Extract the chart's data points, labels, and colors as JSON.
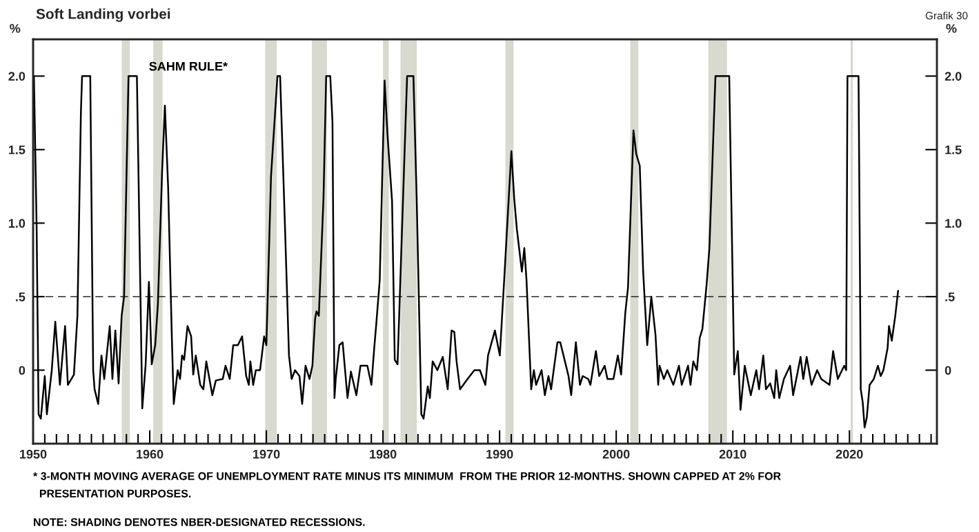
{
  "chart_data": {
    "type": "line",
    "title": "Soft Landing vorbei",
    "ylabel": "%",
    "y2label": "%",
    "annotations": [
      "SAHM RULE*",
      "Grafik 30",
      "* 3-MONTH MOVING AVERAGE OF UNEMPLOYMENT RATE MINUS ITS MINIMUM  FROM THE PRIOR 12-MONTHS. SHOWN CAPPED AT 2% FOR\n  PRESENTATION PURPOSES.",
      "NOTE: SHADING DENOTES NBER-DESIGNATED RECESSIONS."
    ],
    "series": [
      {
        "color": "#000000",
        "line_style": "solid",
        "x": [
          1950.07,
          1950.3,
          1950.47,
          1950.66,
          1951.0,
          1951.18,
          1951.6,
          1951.9,
          1952.3,
          1952.74,
          1952.98,
          1953.5,
          1953.8,
          1954.1,
          1954.2,
          1954.9,
          1955.15,
          1955.27,
          1955.58,
          1955.86,
          1956.1,
          1956.57,
          1956.8,
          1957.05,
          1957.33,
          1957.59,
          1957.8,
          1958.18,
          1958.9,
          1959.36,
          1959.65,
          1959.93,
          1960.17,
          1960.47,
          1960.7,
          1961.06,
          1961.3,
          1961.58,
          1961.89,
          1962.06,
          1962.4,
          1962.6,
          1962.77,
          1962.95,
          1963.24,
          1963.55,
          1963.73,
          1963.95,
          1964.33,
          1964.6,
          1964.85,
          1965.37,
          1965.67,
          1966.26,
          1966.5,
          1966.86,
          1967.16,
          1967.56,
          1967.92,
          1968.27,
          1968.5,
          1968.63,
          1968.87,
          1969.1,
          1969.46,
          1969.81,
          1970.0,
          1970.4,
          1970.95,
          1971.18,
          1971.58,
          1971.94,
          1972.17,
          1972.46,
          1972.84,
          1973.07,
          1973.36,
          1973.7,
          1973.95,
          1974.18,
          1974.3,
          1974.5,
          1974.9,
          1975.13,
          1975.48,
          1975.67,
          1975.84,
          1975.95,
          1976.26,
          1976.54,
          1976.96,
          1977.25,
          1977.72,
          1978.07,
          1978.66,
          1979.01,
          1979.25,
          1979.41,
          1979.72,
          1980.14,
          1980.38,
          1980.78,
          1981.01,
          1981.25,
          1982.07,
          1982.61,
          1982.89,
          1983.29,
          1983.48,
          1983.84,
          1984.02,
          1984.26,
          1984.66,
          1985.13,
          1985.55,
          1985.88,
          1986.12,
          1986.31,
          1986.61,
          1987.25,
          1987.84,
          1988.31,
          1988.78,
          1989.01,
          1989.6,
          1990.02,
          1990.42,
          1991.01,
          1991.25,
          1991.48,
          1991.91,
          1992.12,
          1992.31,
          1992.71,
          1992.94,
          1993.13,
          1993.6,
          1993.88,
          1994.19,
          1994.42,
          1994.96,
          1995.2,
          1995.48,
          1995.91,
          1996.14,
          1996.54,
          1996.89,
          1997.13,
          1997.6,
          1997.79,
          1998.26,
          1998.54,
          1999.01,
          1999.25,
          1999.76,
          2000.14,
          2000.42,
          2000.78,
          2001.01,
          2001.48,
          2001.72,
          2002.02,
          2002.31,
          2002.66,
          2003.01,
          2003.37,
          2003.6,
          2003.72,
          2004.08,
          2004.38,
          2004.9,
          2005.38,
          2005.62,
          2006.16,
          2006.37,
          2006.61,
          2006.92,
          2007.16,
          2007.39,
          2007.75,
          2007.99,
          2008.51,
          2009.69,
          2010.12,
          2010.43,
          2010.66,
          2011.02,
          2011.54,
          2012.01,
          2012.25,
          2012.61,
          2012.84,
          2013.2,
          2013.55,
          2013.72,
          2013.98,
          2014.38,
          2014.91,
          2015.17,
          2015.81,
          2016.04,
          2016.33,
          2016.75,
          2017.23,
          2017.58,
          2018.29,
          2018.6,
          2019.0,
          2019.55,
          2019.72,
          2019.83,
          2020.78,
          2020.97,
          2021.14,
          2021.3,
          2021.49,
          2021.73,
          2022.09,
          2022.44,
          2022.68,
          2022.91,
          2023.27,
          2023.39,
          2023.63,
          2023.93,
          2024.17
        ],
        "values": [
          2.0,
          0.98,
          -0.3,
          -0.33,
          -0.04,
          -0.3,
          0,
          0.33,
          -0.1,
          0.3,
          -0.1,
          -0.03,
          0.37,
          1.76,
          2.0,
          2.0,
          0,
          -0.13,
          -0.23,
          0.1,
          -0.06,
          0.3,
          -0.06,
          0.27,
          -0.09,
          0.37,
          0.5,
          2.0,
          2.0,
          -0.26,
          0.04,
          0.6,
          0.04,
          0.17,
          0.45,
          1.35,
          1.8,
          1.24,
          0.24,
          -0.23,
          0,
          -0.06,
          0.1,
          0.07,
          0.3,
          0.23,
          -0.03,
          0.1,
          -0.1,
          -0.13,
          0.06,
          -0.17,
          -0.07,
          -0.06,
          0.03,
          -0.06,
          0.17,
          0.17,
          0.23,
          -0.04,
          -0.1,
          0.06,
          -0.1,
          0,
          0,
          0.23,
          0.17,
          1.32,
          2.0,
          2.0,
          1.02,
          0.1,
          -0.06,
          0,
          -0.04,
          -0.23,
          0.03,
          -0.06,
          0.03,
          0.35,
          0.4,
          0.37,
          1.17,
          2.0,
          2.0,
          1.69,
          -0.19,
          -0.06,
          0.17,
          0.19,
          -0.19,
          -0.01,
          -0.17,
          0.03,
          0.03,
          -0.1,
          0.15,
          0.3,
          0.61,
          1.97,
          1.61,
          1.15,
          0.07,
          0.04,
          2.0,
          2.0,
          1.17,
          -0.3,
          -0.33,
          -0.11,
          -0.19,
          0.06,
          0,
          0.09,
          -0.13,
          0.27,
          0.26,
          0.06,
          -0.13,
          -0.06,
          0,
          0,
          -0.1,
          0.1,
          0.27,
          0.1,
          0.65,
          1.49,
          1.17,
          0.96,
          0.67,
          0.83,
          0.61,
          -0.13,
          0,
          -0.1,
          0,
          -0.17,
          -0.04,
          -0.13,
          0.19,
          0.19,
          0.1,
          -0.04,
          -0.17,
          0.19,
          -0.1,
          -0.04,
          -0.06,
          -0.1,
          0.13,
          -0.04,
          0.03,
          -0.06,
          -0.06,
          0.1,
          -0.03,
          0.39,
          0.56,
          1.63,
          1.47,
          1.39,
          0.67,
          0.17,
          0.5,
          0.24,
          -0.1,
          0.03,
          -0.06,
          0,
          -0.1,
          0.03,
          -0.1,
          0.03,
          -0.1,
          0.06,
          0,
          0.22,
          0.28,
          0.58,
          0.83,
          2.0,
          2.0,
          -0.03,
          0.13,
          -0.27,
          0.03,
          -0.17,
          0,
          -0.13,
          0.1,
          -0.13,
          -0.09,
          -0.19,
          0,
          -0.19,
          -0.06,
          0.03,
          -0.17,
          0.09,
          -0.06,
          0.09,
          -0.1,
          0,
          -0.06,
          -0.1,
          0.13,
          -0.06,
          0.03,
          0,
          2.0,
          2.0,
          -0.13,
          -0.22,
          -0.39,
          -0.32,
          -0.1,
          -0.06,
          0.03,
          -0.04,
          0,
          0.15,
          0.3,
          0.2,
          0.37,
          0.54
        ]
      }
    ],
    "xlim": [
      1950,
      2027.5
    ],
    "xticks": [
      {
        "value": 1950,
        "label": "1950"
      },
      {
        "value": 1951,
        "label": null
      },
      {
        "value": 1952,
        "label": null
      },
      {
        "value": 1953,
        "label": null
      },
      {
        "value": 1954,
        "label": null
      },
      {
        "value": 1955,
        "label": null
      },
      {
        "value": 1956,
        "label": null
      },
      {
        "value": 1957,
        "label": null
      },
      {
        "value": 1958,
        "label": null
      },
      {
        "value": 1959,
        "label": null
      },
      {
        "value": 1960,
        "label": "1960"
      },
      {
        "value": 1961,
        "label": null
      },
      {
        "value": 1962,
        "label": null
      },
      {
        "value": 1963,
        "label": null
      },
      {
        "value": 1964,
        "label": null
      },
      {
        "value": 1965,
        "label": null
      },
      {
        "value": 1966,
        "label": null
      },
      {
        "value": 1967,
        "label": null
      },
      {
        "value": 1968,
        "label": null
      },
      {
        "value": 1969,
        "label": null
      },
      {
        "value": 1970,
        "label": "1970"
      },
      {
        "value": 1971,
        "label": null
      },
      {
        "value": 1972,
        "label": null
      },
      {
        "value": 1973,
        "label": null
      },
      {
        "value": 1974,
        "label": null
      },
      {
        "value": 1975,
        "label": null
      },
      {
        "value": 1976,
        "label": null
      },
      {
        "value": 1977,
        "label": null
      },
      {
        "value": 1978,
        "label": null
      },
      {
        "value": 1979,
        "label": null
      },
      {
        "value": 1980,
        "label": "1980"
      },
      {
        "value": 1981,
        "label": null
      },
      {
        "value": 1982,
        "label": null
      },
      {
        "value": 1983,
        "label": null
      },
      {
        "value": 1984,
        "label": null
      },
      {
        "value": 1985,
        "label": null
      },
      {
        "value": 1986,
        "label": null
      },
      {
        "value": 1987,
        "label": null
      },
      {
        "value": 1988,
        "label": null
      },
      {
        "value": 1989,
        "label": null
      },
      {
        "value": 1990,
        "label": "1990"
      },
      {
        "value": 1991,
        "label": null
      },
      {
        "value": 1992,
        "label": null
      },
      {
        "value": 1993,
        "label": null
      },
      {
        "value": 1994,
        "label": null
      },
      {
        "value": 1995,
        "label": null
      },
      {
        "value": 1996,
        "label": null
      },
      {
        "value": 1997,
        "label": null
      },
      {
        "value": 1998,
        "label": null
      },
      {
        "value": 1999,
        "label": null
      },
      {
        "value": 2000,
        "label": "2000"
      },
      {
        "value": 2001,
        "label": null
      },
      {
        "value": 2002,
        "label": null
      },
      {
        "value": 2003,
        "label": null
      },
      {
        "value": 2004,
        "label": null
      },
      {
        "value": 2005,
        "label": null
      },
      {
        "value": 2006,
        "label": null
      },
      {
        "value": 2007,
        "label": null
      },
      {
        "value": 2008,
        "label": null
      },
      {
        "value": 2009,
        "label": null
      },
      {
        "value": 2010,
        "label": "2010"
      },
      {
        "value": 2011,
        "label": null
      },
      {
        "value": 2012,
        "label": null
      },
      {
        "value": 2013,
        "label": null
      },
      {
        "value": 2014,
        "label": null
      },
      {
        "value": 2015,
        "label": null
      },
      {
        "value": 2016,
        "label": null
      },
      {
        "value": 2017,
        "label": null
      },
      {
        "value": 2018,
        "label": null
      },
      {
        "value": 2019,
        "label": null
      },
      {
        "value": 2020,
        "label": "2020"
      },
      {
        "value": 2021,
        "label": null
      },
      {
        "value": 2022,
        "label": null
      },
      {
        "value": 2023,
        "label": null
      },
      {
        "value": 2024,
        "label": null
      },
      {
        "value": 2025,
        "label": null
      },
      {
        "value": 2026,
        "label": null
      },
      {
        "value": 2027,
        "label": null
      }
    ],
    "ylim": [
      -0.5,
      2.25
    ],
    "yticks": [
      0,
      {
        "value": 0.5,
        "label": ".5"
      },
      {
        "value": 1.0,
        "label": "1.0"
      },
      {
        "value": 1.5,
        "label": "1.5"
      },
      {
        "value": 2.0,
        "label": "2.0"
      }
    ],
    "y2lim": [
      -0.5,
      2.25
    ],
    "y2ticks": [
      0,
      {
        "value": 0.5,
        "label": ".5"
      },
      {
        "value": 1.0,
        "label": "1.0"
      },
      {
        "value": 1.5,
        "label": "1.5"
      },
      {
        "value": 2.0,
        "label": "2.0"
      }
    ],
    "ref_lines": [
      {
        "axis": "y",
        "value": 0.5,
        "color": "#000000",
        "line_style": "dashed"
      }
    ],
    "bands": [
      {
        "axis": "x",
        "from": 1957.6,
        "to": 1958.3,
        "color": "#d8d9cf"
      },
      {
        "axis": "x",
        "from": 1960.3,
        "to": 1961.1,
        "color": "#d8d9cf"
      },
      {
        "axis": "x",
        "from": 1969.9,
        "to": 1970.9,
        "color": "#d8d9cf"
      },
      {
        "axis": "x",
        "from": 1973.9,
        "to": 1975.2,
        "color": "#d8d9cf"
      },
      {
        "axis": "x",
        "from": 1980.0,
        "to": 1980.5,
        "color": "#d8d9cf"
      },
      {
        "axis": "x",
        "from": 1981.5,
        "to": 1982.9,
        "color": "#d8d9cf"
      },
      {
        "axis": "x",
        "from": 1990.5,
        "to": 1991.2,
        "color": "#d8d9cf"
      },
      {
        "axis": "x",
        "from": 2001.2,
        "to": 2001.9,
        "color": "#d8d9cf"
      },
      {
        "axis": "x",
        "from": 2007.9,
        "to": 2009.5,
        "color": "#d8d9cf"
      },
      {
        "axis": "x",
        "from": 2020.1,
        "to": 2020.3,
        "color": "#d8d9cf"
      }
    ],
    "grid": false,
    "legend": false,
    "marker": "none"
  }
}
